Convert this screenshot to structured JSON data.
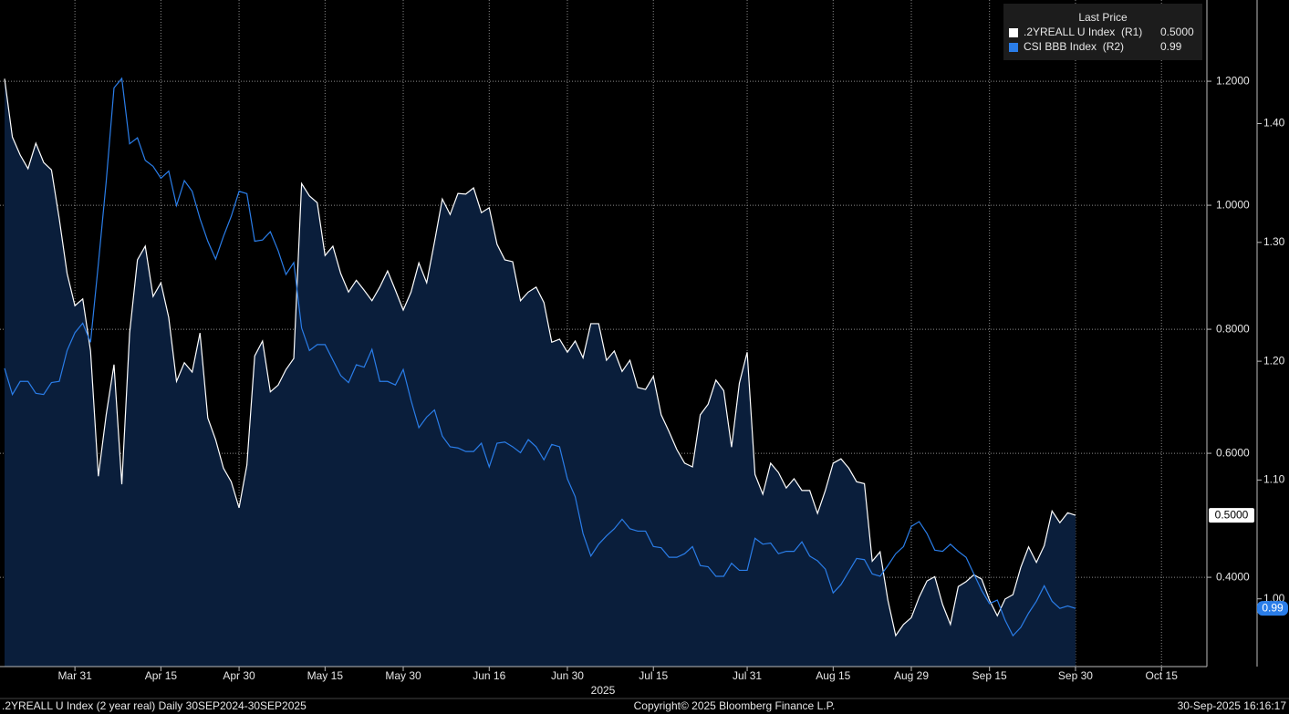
{
  "chart_data": {
    "type": "line",
    "legend_title": "Last Price",
    "x_group_label": "2025",
    "footer_left": ".2YREALL U Index (2 year real) Daily 30SEP2024-30SEP2025",
    "footer_center": "Copyright© 2025 Bloomberg Finance L.P.",
    "footer_right": "30-Sep-2025 16:16:17",
    "categories": [
      null,
      null,
      null,
      null,
      null,
      null,
      null,
      null,
      null,
      "Mar 31",
      null,
      null,
      null,
      null,
      null,
      null,
      null,
      null,
      null,
      null,
      "Apr 15",
      null,
      null,
      null,
      null,
      null,
      null,
      null,
      null,
      null,
      "Apr 30",
      null,
      null,
      null,
      null,
      null,
      null,
      null,
      null,
      null,
      null,
      "May 15",
      null,
      null,
      null,
      null,
      null,
      null,
      null,
      null,
      null,
      "May 30",
      null,
      null,
      null,
      null,
      null,
      null,
      null,
      null,
      null,
      null,
      "Jun 16",
      null,
      null,
      null,
      null,
      null,
      null,
      null,
      null,
      null,
      "Jun 30",
      null,
      null,
      null,
      null,
      null,
      null,
      null,
      null,
      null,
      null,
      "Jul 15",
      null,
      null,
      null,
      null,
      null,
      null,
      null,
      null,
      null,
      null,
      null,
      "Jul 31",
      null,
      null,
      null,
      null,
      null,
      null,
      null,
      null,
      null,
      null,
      "Aug 15",
      null,
      null,
      null,
      null,
      null,
      null,
      null,
      null,
      null,
      "Aug 29",
      null,
      null,
      null,
      null,
      null,
      null,
      null,
      null,
      null,
      "Sep 15",
      null,
      null,
      null,
      null,
      null,
      null,
      null,
      null,
      null,
      null,
      "Sep 30",
      null,
      null,
      null,
      null,
      null,
      null,
      null,
      null,
      null,
      null,
      "Oct 15",
      null,
      null,
      null,
      null,
      null
    ],
    "series": [
      {
        "name": ".2YREALL U Index  (R1)",
        "color": "#ffffff",
        "fill": "#0a1e3b",
        "axis": "y",
        "values": [
          1.204,
          1.11,
          1.081,
          1.059,
          1.1,
          1.069,
          1.057,
          0.978,
          0.89,
          0.838,
          0.849,
          0.765,
          0.563,
          0.662,
          0.743,
          0.55,
          0.794,
          0.912,
          0.934,
          0.853,
          0.875,
          0.819,
          0.716,
          0.746,
          0.731,
          0.794,
          0.657,
          0.622,
          0.576,
          0.554,
          0.512,
          0.581,
          0.757,
          0.781,
          0.699,
          0.71,
          0.735,
          0.753,
          1.035,
          1.015,
          1.004,
          0.919,
          0.934,
          0.89,
          0.86,
          0.879,
          0.863,
          0.846,
          0.868,
          0.894,
          0.863,
          0.831,
          0.86,
          0.907,
          0.875,
          0.941,
          1.01,
          0.985,
          1.019,
          1.018,
          1.028,
          0.988,
          0.996,
          0.937,
          0.912,
          0.909,
          0.846,
          0.86,
          0.868,
          0.843,
          0.779,
          0.784,
          0.763,
          0.781,
          0.754,
          0.809,
          0.809,
          0.75,
          0.765,
          0.732,
          0.75,
          0.706,
          0.703,
          0.724,
          0.662,
          0.635,
          0.606,
          0.584,
          0.578,
          0.662,
          0.679,
          0.718,
          0.701,
          0.61,
          0.713,
          0.763,
          0.566,
          0.534,
          0.584,
          0.569,
          0.544,
          0.559,
          0.54,
          0.54,
          0.503,
          0.54,
          0.584,
          0.591,
          0.576,
          0.554,
          0.551,
          0.426,
          0.441,
          0.363,
          0.306,
          0.324,
          0.335,
          0.368,
          0.394,
          0.401,
          0.356,
          0.324,
          0.385,
          0.393,
          0.404,
          0.397,
          0.363,
          0.338,
          0.365,
          0.372,
          0.416,
          0.449,
          0.424,
          0.451,
          0.507,
          0.488,
          0.504,
          0.5,
          null,
          null,
          null,
          null,
          null,
          null,
          null,
          null,
          null,
          null,
          null,
          null,
          null,
          null,
          null,
          null
        ],
        "value_labels": [
          null,
          null,
          null,
          null,
          null,
          null,
          null,
          null,
          null,
          null,
          null,
          null,
          null,
          null,
          null,
          null,
          null,
          null,
          null,
          null,
          null,
          null,
          null,
          null,
          null,
          null,
          null,
          null,
          null,
          null,
          null,
          null,
          null,
          null,
          null,
          null,
          null,
          null,
          null,
          null,
          null,
          null,
          null,
          null,
          null,
          null,
          null,
          null,
          null,
          null,
          null,
          null,
          null,
          null,
          null,
          null,
          null,
          null,
          null,
          null,
          null,
          null,
          null,
          null,
          null,
          null,
          null,
          null,
          null,
          null,
          null,
          null,
          null,
          null,
          null,
          null,
          null,
          null,
          null,
          null,
          null,
          null,
          null,
          null,
          null,
          null,
          null,
          null,
          null,
          null,
          null,
          null,
          null,
          null,
          null,
          null,
          null,
          null,
          null,
          null,
          null,
          null,
          null,
          null,
          null,
          null,
          null,
          null,
          null,
          null,
          null,
          null,
          null,
          null,
          null,
          null,
          null,
          null,
          null,
          null,
          null,
          null,
          null,
          null,
          null,
          null,
          null,
          null,
          null,
          null,
          null,
          null,
          null,
          null,
          null,
          null,
          null,
          "0.5000",
          null,
          null,
          null,
          null,
          null,
          null,
          null,
          null,
          null,
          null,
          null,
          null,
          null,
          null,
          null,
          null
        ]
      },
      {
        "name": "CSI BBB Index  (R2)",
        "color": "#2a7de8",
        "axis": "y2",
        "values": [
          1.194,
          1.172,
          1.183,
          1.183,
          1.173,
          1.172,
          1.182,
          1.183,
          1.209,
          1.224,
          1.232,
          1.216,
          1.282,
          1.351,
          1.43,
          1.438,
          1.383,
          1.388,
          1.369,
          1.364,
          1.354,
          1.36,
          1.331,
          1.352,
          1.343,
          1.32,
          1.301,
          1.286,
          1.305,
          1.322,
          1.343,
          1.341,
          1.301,
          1.302,
          1.309,
          1.293,
          1.273,
          1.283,
          1.228,
          1.209,
          1.214,
          1.214,
          1.201,
          1.188,
          1.182,
          1.197,
          1.195,
          1.21,
          1.183,
          1.183,
          1.18,
          1.193,
          1.167,
          1.144,
          1.153,
          1.159,
          1.137,
          1.128,
          1.127,
          1.124,
          1.124,
          1.131,
          1.111,
          1.131,
          1.132,
          1.128,
          1.123,
          1.134,
          1.128,
          1.117,
          1.13,
          1.128,
          1.101,
          1.086,
          1.055,
          1.036,
          1.046,
          1.053,
          1.059,
          1.067,
          1.059,
          1.057,
          1.057,
          1.044,
          1.043,
          1.035,
          1.035,
          1.038,
          1.044,
          1.028,
          1.027,
          1.019,
          1.019,
          1.03,
          1.024,
          1.024,
          1.051,
          1.046,
          1.047,
          1.038,
          1.04,
          1.04,
          1.048,
          1.036,
          1.032,
          1.025,
          1.005,
          1.012,
          1.023,
          1.034,
          1.033,
          1.021,
          1.019,
          1.028,
          1.038,
          1.044,
          1.061,
          1.065,
          1.055,
          1.041,
          1.04,
          1.046,
          1.04,
          1.035,
          1.021,
          1.007,
          0.996,
          0.999,
          0.982,
          0.969,
          0.976,
          0.988,
          0.998,
          1.011,
          0.998,
          0.992,
          0.994,
          0.992,
          null,
          null,
          null,
          null,
          null,
          null,
          null,
          null,
          null,
          null,
          null,
          null,
          null,
          null,
          null,
          null
        ],
        "value_labels": [
          null,
          null,
          null,
          null,
          null,
          null,
          null,
          null,
          null,
          null,
          null,
          null,
          null,
          null,
          null,
          null,
          null,
          null,
          null,
          null,
          null,
          null,
          null,
          null,
          null,
          null,
          null,
          null,
          null,
          null,
          null,
          null,
          null,
          null,
          null,
          null,
          null,
          null,
          null,
          null,
          null,
          null,
          null,
          null,
          null,
          null,
          null,
          null,
          null,
          null,
          null,
          null,
          null,
          null,
          null,
          null,
          null,
          null,
          null,
          null,
          null,
          null,
          null,
          null,
          null,
          null,
          null,
          null,
          null,
          null,
          null,
          null,
          null,
          null,
          null,
          null,
          null,
          null,
          null,
          null,
          null,
          null,
          null,
          null,
          null,
          null,
          null,
          null,
          null,
          null,
          null,
          null,
          null,
          null,
          null,
          null,
          null,
          null,
          null,
          null,
          null,
          null,
          null,
          null,
          null,
          null,
          null,
          null,
          null,
          null,
          null,
          null,
          null,
          null,
          null,
          null,
          null,
          null,
          null,
          null,
          null,
          null,
          null,
          null,
          null,
          null,
          null,
          null,
          null,
          null,
          null,
          null,
          null,
          null,
          null,
          null,
          null,
          "0.99",
          null,
          null,
          null,
          null,
          null,
          null,
          null,
          null,
          null,
          null,
          null,
          null,
          null,
          null,
          null,
          null
        ]
      }
    ],
    "ylim": [
      0.256,
      1.331
    ],
    "yticks": [
      {
        "value": 0.4,
        "label": "0.4000"
      },
      {
        "value": 0.6,
        "label": "0.6000"
      },
      {
        "value": 0.8,
        "label": "0.8000"
      },
      {
        "value": 1.0,
        "label": "1.0000"
      },
      {
        "value": 1.2,
        "label": "1.2000"
      }
    ],
    "y2lim": [
      0.943,
      1.504
    ],
    "y2ticks": [
      {
        "value": 1.0,
        "label": "1.00"
      },
      {
        "value": 1.1,
        "label": "1.10"
      },
      {
        "value": 1.2,
        "label": "1.20"
      },
      {
        "value": 1.3,
        "label": "1.30"
      },
      {
        "value": 1.4,
        "label": "1.40"
      }
    ],
    "grid": true,
    "legend": "upper right"
  }
}
